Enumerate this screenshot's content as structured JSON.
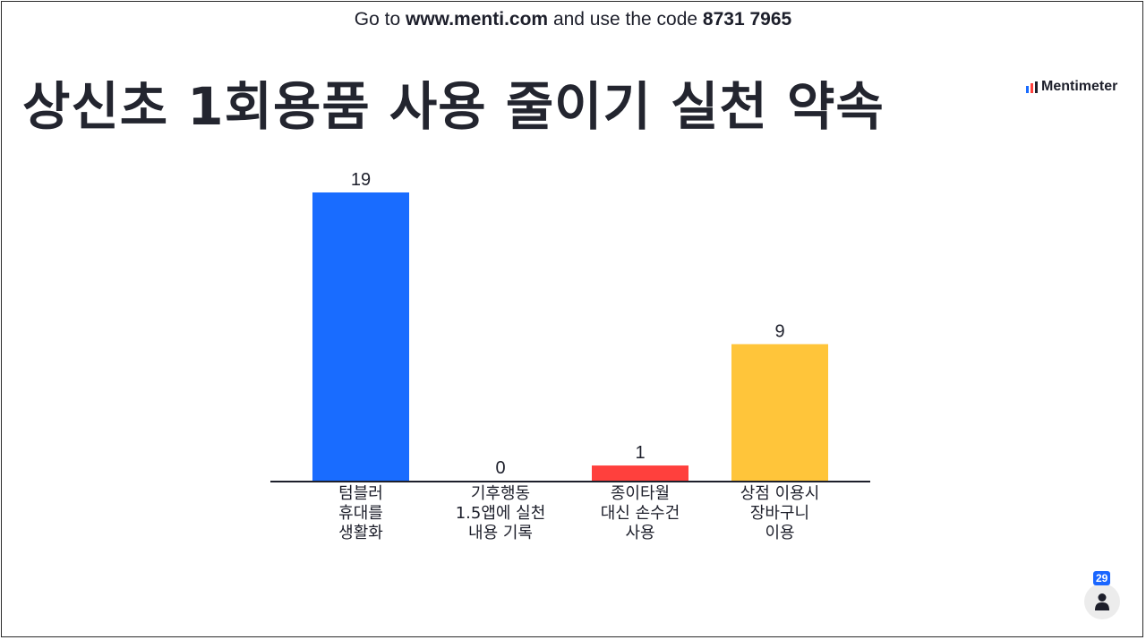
{
  "join": {
    "prefix": "Go to",
    "url": "www.menti.com",
    "middle": "and use the code",
    "code": "8731 7965"
  },
  "slide": {
    "title": "상신초 1회용품 사용 줄이기 실천 약속"
  },
  "brand": {
    "name": "Mentimeter",
    "logo_icon": "mentimeter-bars-icon"
  },
  "participants": {
    "count": "29",
    "icon": "person-icon"
  },
  "chart_data": {
    "type": "bar",
    "categories": [
      [
        "텀블러",
        "휴대를",
        "생활화"
      ],
      [
        "기후행동",
        "1.5앱에 실천",
        "내용 기록"
      ],
      [
        "종이타월",
        "대신 손수건",
        "사용"
      ],
      [
        "상점 이용시",
        "장바구니",
        "이용"
      ]
    ],
    "values": [
      19,
      0,
      1,
      9
    ],
    "colors": [
      "#196cff",
      "#6b7280",
      "#ff403d",
      "#ffc53a"
    ],
    "ylim": [
      0,
      19
    ],
    "grid": false,
    "legend": "none"
  }
}
